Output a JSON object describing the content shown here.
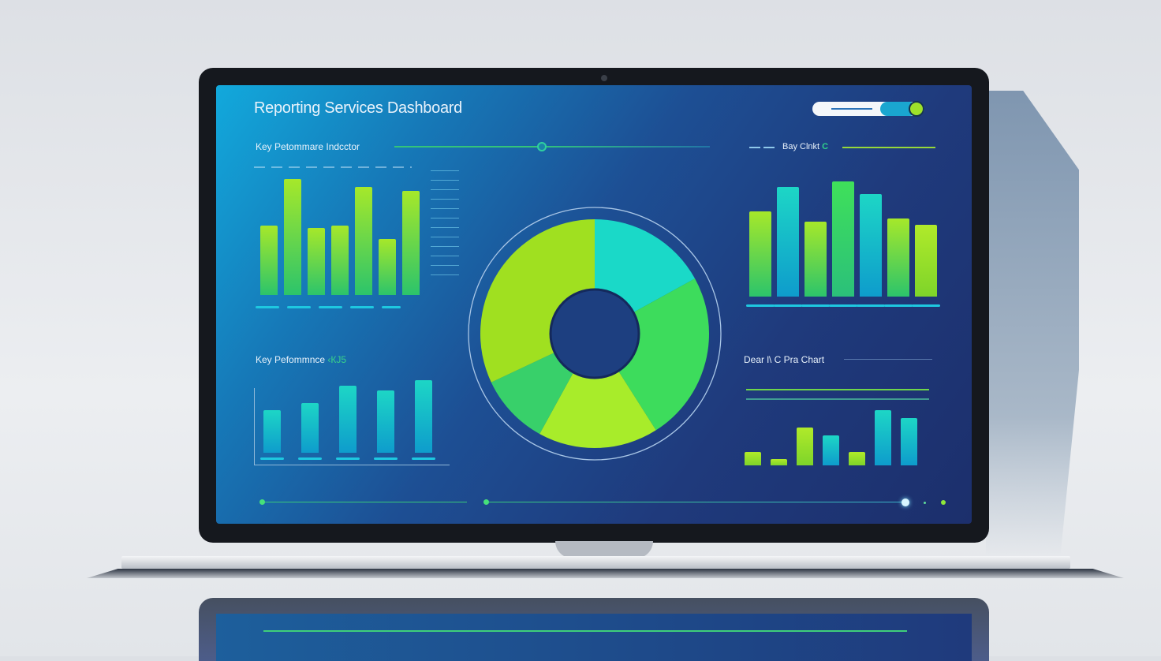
{
  "dashboard": {
    "title": "Reporting Services Dashboard",
    "panels": {
      "top_left": {
        "label": "Key Petommare Indcctor",
        "bar_levels": [
          0.6,
          1.0,
          0.58,
          0.6,
          0.93,
          0.48,
          0.9
        ]
      },
      "bottom_left": {
        "label": "Key Pefommnce",
        "label_suffix": "‹КЈ5",
        "bar_levels": [
          0.57,
          0.67,
          0.9,
          0.84,
          0.98
        ]
      },
      "top_right": {
        "label": "Bay Clnkt",
        "label_icon": "C",
        "bar_levels": [
          0.74,
          0.95,
          0.65,
          1.0,
          0.89,
          0.68,
          0.62
        ]
      },
      "bottom_right": {
        "label": "Dear l\\ C Pra Chart",
        "bar_levels": [
          0.24,
          0.11,
          0.68,
          0.55,
          0.25,
          1.0,
          0.86
        ]
      },
      "donut": {
        "slices": [
          17,
          24,
          17,
          10,
          32
        ]
      }
    },
    "toggle": {
      "on": true,
      "icon": "toggle-knob-icon"
    }
  },
  "colors": {
    "lime": "#a6e82a",
    "green": "#3fd85e",
    "teal": "#1dd6c6",
    "cyan": "#12a9dc",
    "navy": "#1f3a7c",
    "slices": [
      "#1ad9c8",
      "#3ddc5c",
      "#a8ec2a",
      "#38d06a",
      "#a0e020"
    ]
  }
}
